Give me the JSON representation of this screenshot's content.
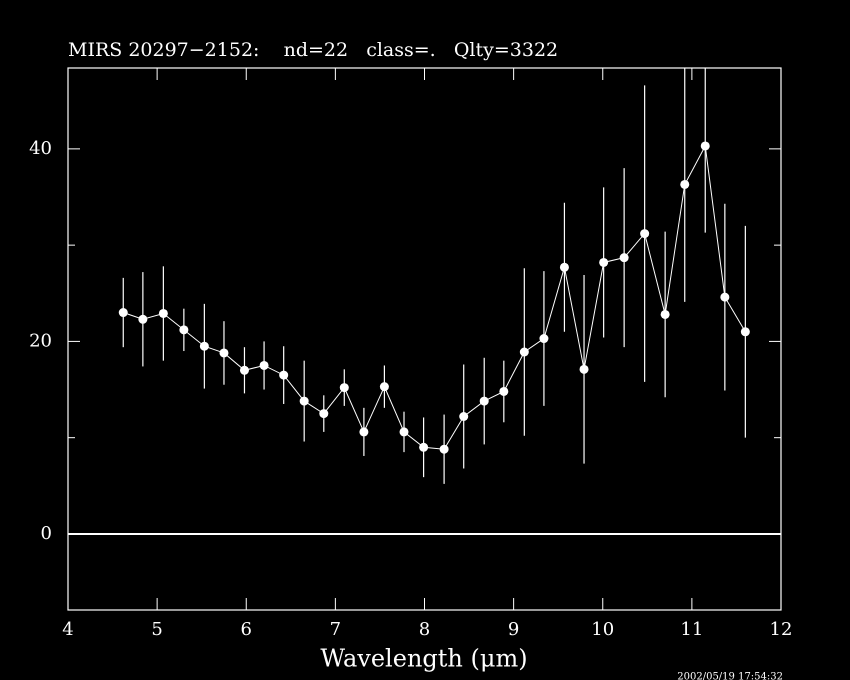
{
  "chart_data": {
    "type": "line",
    "title": "MIRS 20297−2152:    nd=22   class=.   Qlty=3322",
    "x_label": "Wavelength (μm)",
    "annotation": "2002/05/19 17:54:32",
    "x": [
      4.62,
      4.84,
      5.07,
      5.3,
      5.53,
      5.75,
      5.98,
      6.2,
      6.42,
      6.65,
      6.87,
      7.1,
      7.32,
      7.55,
      7.77,
      7.99,
      8.22,
      8.44,
      8.67,
      8.89,
      9.12,
      9.34,
      9.57,
      9.79,
      10.01,
      10.24,
      10.47,
      10.7,
      10.92,
      11.15,
      11.37,
      11.6
    ],
    "values": [
      23.0,
      22.3,
      22.9,
      21.2,
      19.5,
      18.8,
      17.0,
      17.5,
      16.5,
      13.8,
      12.5,
      15.2,
      10.6,
      15.3,
      10.6,
      9.0,
      8.8,
      12.2,
      13.8,
      14.8,
      18.9,
      20.3,
      27.7,
      17.1,
      28.2,
      28.7,
      31.2,
      22.8,
      36.3,
      40.3,
      24.6,
      21.0
    ],
    "errors": [
      3.6,
      4.9,
      4.9,
      2.2,
      4.4,
      3.3,
      2.4,
      2.5,
      3.0,
      4.2,
      1.9,
      1.9,
      2.5,
      2.2,
      2.1,
      3.1,
      3.6,
      5.4,
      4.5,
      3.2,
      8.7,
      7.0,
      6.7,
      9.8,
      7.8,
      9.3,
      15.4,
      8.6,
      12.2,
      9.0,
      9.7,
      11.0
    ],
    "color": "#ffffff",
    "xlim": [
      4,
      12
    ],
    "xticks": [
      4,
      5,
      6,
      7,
      8,
      9,
      10,
      11,
      12
    ],
    "ylim": [
      -7.9,
      48.4
    ],
    "yticks": [
      0,
      20,
      40
    ],
    "yticks_minor": [
      10,
      30
    ]
  }
}
